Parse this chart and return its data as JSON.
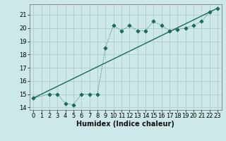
{
  "line1_x": [
    0,
    2,
    3,
    4,
    5,
    6,
    7,
    8,
    9,
    10,
    11,
    12,
    13,
    14,
    15,
    16,
    17,
    18,
    19,
    20,
    21,
    22,
    23
  ],
  "line1_y": [
    14.7,
    15.0,
    15.0,
    14.3,
    14.2,
    15.0,
    15.0,
    15.0,
    18.5,
    20.2,
    19.8,
    20.2,
    19.8,
    19.8,
    20.5,
    20.2,
    19.8,
    19.9,
    20.0,
    20.2,
    20.5,
    21.2,
    21.5
  ],
  "line2_x": [
    0,
    23
  ],
  "line2_y": [
    14.7,
    21.5
  ],
  "color": "#1a6b5a",
  "bg_color": "#cce8e8",
  "grid_color": "#b0cccc",
  "xlabel": "Humidex (Indice chaleur)",
  "xlim": [
    -0.5,
    23.5
  ],
  "ylim": [
    13.8,
    21.8
  ],
  "xticks": [
    0,
    1,
    2,
    3,
    4,
    5,
    6,
    7,
    8,
    9,
    10,
    11,
    12,
    13,
    14,
    15,
    16,
    17,
    18,
    19,
    20,
    21,
    22,
    23
  ],
  "yticks": [
    14,
    15,
    16,
    17,
    18,
    19,
    20,
    21
  ],
  "fontsize_xlabel": 7.0,
  "fontsize_ticks": 6.0
}
